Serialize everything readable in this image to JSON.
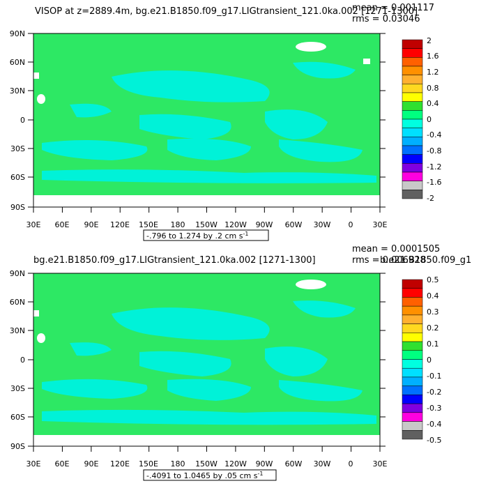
{
  "panels": [
    {
      "title": "VISOP at z=2889.4m, bg.e21.B1850.f09_g17.LIGtransient_121.0ka.002 [1271-1300]",
      "mean": "mean = 0.001117",
      "rms": "rms = 0.03046",
      "contour_info": "-.796 to 1.274 by .2 cm s",
      "contour_unit_exp": "-1",
      "colorbar_labels": [
        "2",
        "1.6",
        "1.2",
        "0.8",
        "0.4",
        "0",
        "-0.4",
        "-0.8",
        "-1.2",
        "-1.6",
        "-2"
      ]
    },
    {
      "title": "bg.e21.B1850.f09_g17.LIGtransient_121.0ka.002 [1271-1300]",
      "mean": "mean = 0.0001505",
      "rms": "rms = 0.006928",
      "overlap_text": "b.e21.B1850.f09_g1",
      "contour_info": "-.4091 to 1.0465 by .05 cm s",
      "contour_unit_exp": "-1",
      "colorbar_labels": [
        "0.5",
        "0.4",
        "0.3",
        "0.2",
        "0.1",
        "0",
        "-0.1",
        "-0.2",
        "-0.3",
        "-0.4",
        "-0.5"
      ]
    }
  ],
  "lat_labels": [
    "90N",
    "60N",
    "30N",
    "0",
    "30S",
    "60S",
    "90S"
  ],
  "lon_labels": [
    "30E",
    "60E",
    "90E",
    "120E",
    "150E",
    "180",
    "150W",
    "120W",
    "90W",
    "60W",
    "30W",
    "0",
    "30E"
  ],
  "colorbar_colors": [
    "#c00000",
    "#ff0000",
    "#ff6000",
    "#ff9000",
    "#ffb030",
    "#ffd820",
    "#ffff00",
    "#30e030",
    "#00ff80",
    "#00ffe0",
    "#00e0ff",
    "#00b0ff",
    "#0070ff",
    "#0000ff",
    "#8000e0",
    "#ff00e0",
    "#c8c8c8",
    "#606060"
  ],
  "map_colors": {
    "land_ocean_green": "#2de864",
    "cyan_patches": "#00f2d8",
    "ice_white": "#ffffff"
  }
}
